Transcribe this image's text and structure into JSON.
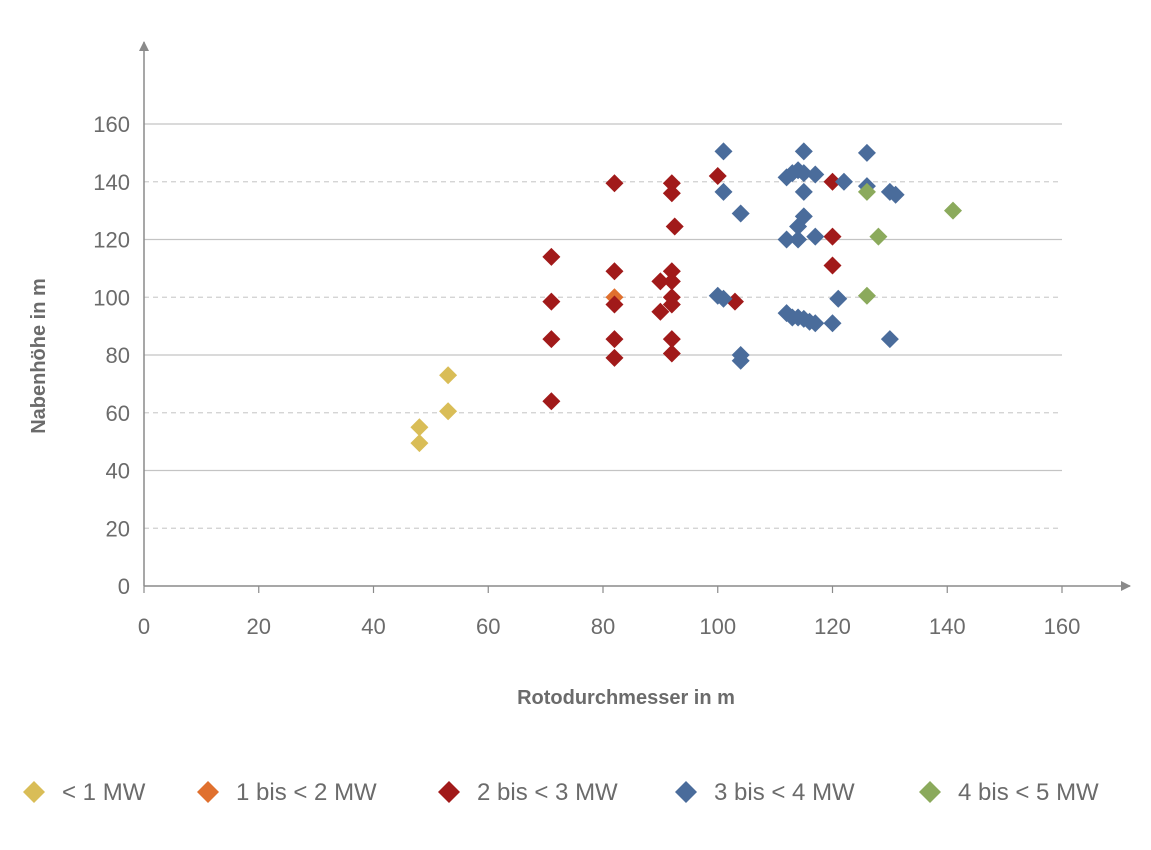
{
  "chart_data": {
    "type": "scatter",
    "title": "",
    "xlabel": "Rotodurchmesser in m",
    "ylabel": "Nabenhöhe in m",
    "xlim": [
      0,
      160
    ],
    "ylim": [
      0,
      160
    ],
    "xticks": [
      0,
      20,
      40,
      60,
      80,
      100,
      120,
      140,
      160
    ],
    "yticks": [
      0,
      20,
      40,
      60,
      80,
      100,
      120,
      140,
      160
    ],
    "grid": true,
    "legend_position": "bottom",
    "marker": "diamond",
    "series": [
      {
        "name": "< 1 MW",
        "color": "#D9BD57",
        "points": [
          [
            48,
            55
          ],
          [
            48,
            49.5
          ],
          [
            53,
            73
          ],
          [
            53,
            60.5
          ]
        ]
      },
      {
        "name": "1 bis < 2 MW",
        "color": "#E0702E",
        "points": [
          [
            82,
            100
          ]
        ]
      },
      {
        "name": "2 bis < 3 MW",
        "color": "#A11A1A",
        "points": [
          [
            71,
            114
          ],
          [
            71,
            98.5
          ],
          [
            71,
            85.5
          ],
          [
            71,
            64
          ],
          [
            82,
            139.5
          ],
          [
            82,
            109
          ],
          [
            82,
            97.5
          ],
          [
            82,
            85.5
          ],
          [
            82,
            79
          ],
          [
            90,
            105.5
          ],
          [
            90,
            95
          ],
          [
            92,
            139.5
          ],
          [
            92,
            136
          ],
          [
            92,
            109
          ],
          [
            92,
            105.5
          ],
          [
            92,
            100
          ],
          [
            92,
            97.5
          ],
          [
            92,
            85.5
          ],
          [
            92,
            80.5
          ],
          [
            92.5,
            124.5
          ],
          [
            100,
            142
          ],
          [
            103,
            98.5
          ],
          [
            120,
            140
          ],
          [
            120,
            121
          ],
          [
            120,
            111
          ]
        ]
      },
      {
        "name": "3 bis < 4 MW",
        "color": "#4A6C9B",
        "points": [
          [
            101,
            150.5
          ],
          [
            101,
            136.5
          ],
          [
            100,
            100.5
          ],
          [
            101,
            99.5
          ],
          [
            104,
            129
          ],
          [
            104,
            80
          ],
          [
            104,
            78
          ],
          [
            112,
            141.5
          ],
          [
            113,
            143
          ],
          [
            114,
            144
          ],
          [
            115,
            143
          ],
          [
            117,
            142.5
          ],
          [
            115,
            150.5
          ],
          [
            115,
            136.5
          ],
          [
            122,
            140
          ],
          [
            115,
            128
          ],
          [
            114,
            124.5
          ],
          [
            112,
            120
          ],
          [
            114,
            120
          ],
          [
            117,
            121
          ],
          [
            112,
            94.5
          ],
          [
            113,
            93
          ],
          [
            114,
            93
          ],
          [
            115,
            92.5
          ],
          [
            116,
            91.5
          ],
          [
            117,
            91
          ],
          [
            120,
            91
          ],
          [
            121,
            99.5
          ],
          [
            126,
            150
          ],
          [
            126,
            138.5
          ],
          [
            130,
            136.5
          ],
          [
            131,
            135.5
          ],
          [
            130,
            85.5
          ]
        ]
      },
      {
        "name": "4 bis < 5 MW",
        "color": "#8BAA5C",
        "points": [
          [
            126,
            136.5
          ],
          [
            128,
            121
          ],
          [
            126,
            100.5
          ],
          [
            141,
            130
          ]
        ]
      }
    ]
  }
}
